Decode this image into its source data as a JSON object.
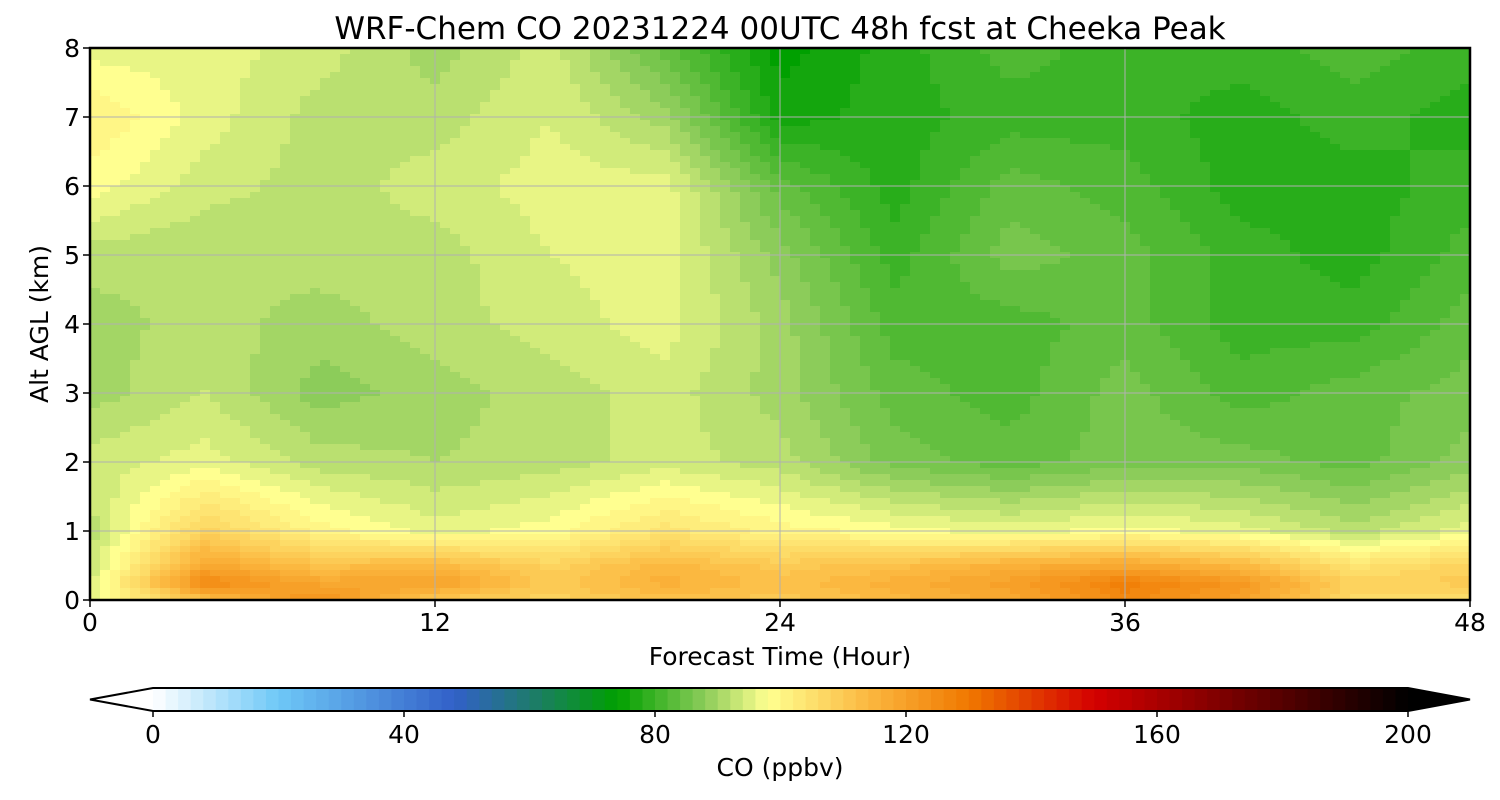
{
  "chart_data": {
    "type": "heatmap",
    "title": "WRF-Chem CO  20231224 00UTC 48h fcst at Cheeka Peak",
    "xlabel": "Forecast Time (Hour)",
    "ylabel": "Alt AGL (km)",
    "xlim": [
      0,
      48
    ],
    "ylim": [
      0,
      8
    ],
    "xticks": [
      0,
      12,
      24,
      36,
      48
    ],
    "yticks": [
      0,
      1,
      2,
      3,
      4,
      5,
      6,
      7,
      8
    ],
    "grid": true,
    "x": [
      0,
      4,
      8,
      12,
      16,
      20,
      24,
      28,
      32,
      36,
      40,
      44,
      48
    ],
    "y": [
      0,
      0.25,
      0.5,
      1,
      2,
      3,
      4,
      5,
      6,
      7,
      8
    ],
    "z": [
      [
        96,
        112,
        124,
        110,
        108,
        112,
        110,
        114,
        118,
        126,
        120,
        106,
        104
      ],
      [
        94,
        126,
        118,
        120,
        110,
        116,
        112,
        116,
        120,
        128,
        122,
        108,
        110
      ],
      [
        93,
        118,
        112,
        114,
        108,
        114,
        110,
        112,
        116,
        118,
        114,
        104,
        108
      ],
      [
        92,
        108,
        100,
        96,
        98,
        104,
        100,
        98,
        96,
        98,
        96,
        92,
        96
      ],
      [
        94,
        96,
        92,
        91,
        92,
        94,
        92,
        86,
        84,
        86,
        86,
        84,
        88
      ],
      [
        90,
        93,
        88,
        90,
        92,
        94,
        90,
        84,
        82,
        86,
        82,
        84,
        86
      ],
      [
        90,
        92,
        90,
        92,
        94,
        96,
        90,
        82,
        82,
        84,
        80,
        80,
        84
      ],
      [
        92,
        91,
        92,
        92,
        95,
        96,
        88,
        80,
        86,
        84,
        80,
        78,
        82
      ],
      [
        98,
        94,
        92,
        94,
        96,
        96,
        84,
        78,
        84,
        82,
        78,
        78,
        80
      ],
      [
        101,
        96,
        92,
        92,
        95,
        90,
        76,
        78,
        80,
        80,
        78,
        80,
        78
      ],
      [
        96,
        96,
        94,
        90,
        94,
        84,
        74,
        78,
        82,
        80,
        80,
        82,
        80
      ]
    ],
    "colorbar": {
      "label": "CO  (ppbv)",
      "min": 0,
      "max": 200,
      "ticks": [
        0,
        40,
        80,
        120,
        160,
        200
      ],
      "extend": "both",
      "stops": [
        {
          "v": 0,
          "c": "#ffffff"
        },
        {
          "v": 20,
          "c": "#6ec8f7"
        },
        {
          "v": 48,
          "c": "#3260c8"
        },
        {
          "v": 60,
          "c": "#1e7a6e"
        },
        {
          "v": 74,
          "c": "#00a000"
        },
        {
          "v": 88,
          "c": "#8ccc5a"
        },
        {
          "v": 98,
          "c": "#ffff90"
        },
        {
          "v": 114,
          "c": "#fbb840"
        },
        {
          "v": 130,
          "c": "#f07800"
        },
        {
          "v": 150,
          "c": "#d40000"
        },
        {
          "v": 175,
          "c": "#6a0000"
        },
        {
          "v": 200,
          "c": "#000000"
        }
      ]
    }
  }
}
